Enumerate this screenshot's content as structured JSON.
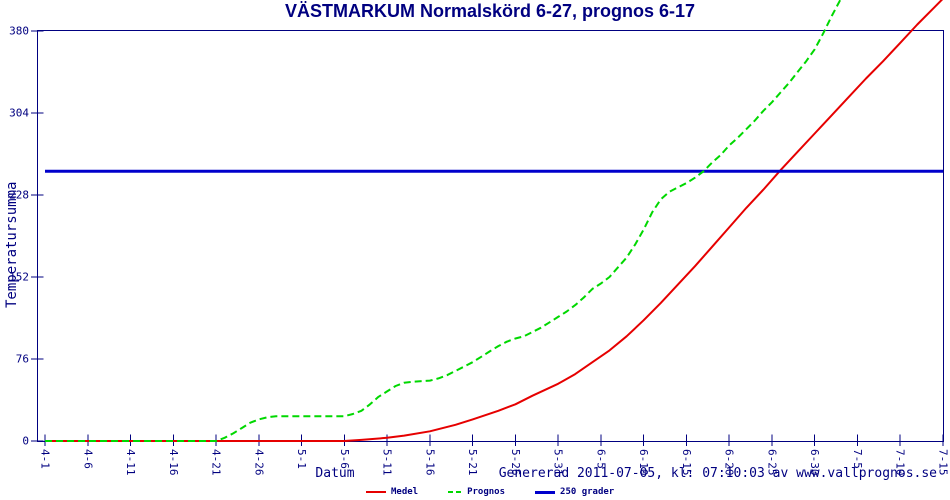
{
  "title": "VÄSTMARKUM Normalskörd 6-27, prognos 6-17",
  "footer": {
    "text": "Genererad 2011-07-05, kl: 07:10:03 av www.vallprognos.se"
  },
  "colors": {
    "text_and_frame": "#000080",
    "medel": "#e60000",
    "prognos": "#00d800",
    "reference_line": "#0000cc",
    "background": "#ffffff"
  },
  "chart_data": {
    "type": "line",
    "title": "VÄSTMARKUM Normalskörd 6-27, prognos 6-17",
    "xlabel": "Datum",
    "ylabel": "Temperatursumma",
    "ylim": [
      0,
      380
    ],
    "y_ticks": [
      0,
      76,
      152,
      228,
      304,
      380
    ],
    "x_ticks": [
      "4-1",
      "4-6",
      "4-11",
      "4-16",
      "4-21",
      "4-26",
      "5-1",
      "5-6",
      "5-11",
      "5-16",
      "5-21",
      "5-26",
      "5-31",
      "6-5",
      "6-10",
      "6-15",
      "6-20",
      "6-25",
      "6-30",
      "7-5",
      "7-10",
      "7-15"
    ],
    "x_range": [
      "4-1",
      "7-15"
    ],
    "grid": false,
    "legend_position": "bottom-center",
    "series": [
      {
        "name": "Medel",
        "color": "#e60000",
        "style": "solid",
        "width": 2,
        "points": [
          [
            "4-1",
            0
          ],
          [
            "4-11",
            0
          ],
          [
            "4-21",
            0
          ],
          [
            "5-1",
            0
          ],
          [
            "5-6",
            0
          ],
          [
            "5-8",
            1
          ],
          [
            "5-11",
            3
          ],
          [
            "5-13",
            5
          ],
          [
            "5-16",
            9
          ],
          [
            "5-19",
            15
          ],
          [
            "5-21",
            20
          ],
          [
            "5-24",
            28
          ],
          [
            "5-26",
            34
          ],
          [
            "5-28",
            42
          ],
          [
            "5-31",
            53
          ],
          [
            "6-2",
            62
          ],
          [
            "6-4",
            73
          ],
          [
            "6-6",
            84
          ],
          [
            "6-8",
            97
          ],
          [
            "6-10",
            112
          ],
          [
            "6-12",
            128
          ],
          [
            "6-14",
            145
          ],
          [
            "6-16",
            162
          ],
          [
            "6-18",
            180
          ],
          [
            "6-20",
            198
          ],
          [
            "6-22",
            216
          ],
          [
            "6-24",
            233
          ],
          [
            "6-26",
            251
          ],
          [
            "6-28",
            268
          ],
          [
            "6-30",
            285
          ],
          [
            "7-2",
            302
          ],
          [
            "7-4",
            319
          ],
          [
            "7-6",
            336
          ],
          [
            "7-8",
            352
          ],
          [
            "7-10",
            369
          ],
          [
            "7-12",
            386
          ],
          [
            "7-14",
            402
          ],
          [
            "7-15",
            410
          ]
        ]
      },
      {
        "name": "250 grader",
        "color": "#0000cc",
        "style": "solid",
        "width": 3,
        "points": [
          [
            "4-1",
            250
          ],
          [
            "7-15",
            250
          ]
        ]
      },
      {
        "name": "Prognos",
        "color": "#00d800",
        "style": "dashed",
        "width": 2,
        "points": [
          [
            "4-1",
            0
          ],
          [
            "4-11",
            0
          ],
          [
            "4-21",
            0
          ],
          [
            "4-22",
            3
          ],
          [
            "4-23",
            7
          ],
          [
            "4-24",
            12
          ],
          [
            "4-25",
            17
          ],
          [
            "4-26",
            20
          ],
          [
            "4-27",
            22
          ],
          [
            "4-28",
            23
          ],
          [
            "5-2",
            23
          ],
          [
            "5-6",
            23
          ],
          [
            "5-7",
            25
          ],
          [
            "5-8",
            28
          ],
          [
            "5-9",
            34
          ],
          [
            "5-10",
            41
          ],
          [
            "5-11",
            46
          ],
          [
            "5-12",
            51
          ],
          [
            "5-13",
            54
          ],
          [
            "5-14",
            55
          ],
          [
            "5-16",
            56
          ],
          [
            "5-17",
            58
          ],
          [
            "5-18",
            61
          ],
          [
            "5-19",
            65
          ],
          [
            "5-20",
            69
          ],
          [
            "5-21",
            73
          ],
          [
            "5-22",
            78
          ],
          [
            "5-23",
            83
          ],
          [
            "5-24",
            88
          ],
          [
            "5-25",
            92
          ],
          [
            "5-26",
            95
          ],
          [
            "5-27",
            97
          ],
          [
            "5-28",
            101
          ],
          [
            "5-29",
            105
          ],
          [
            "5-30",
            110
          ],
          [
            "5-31",
            115
          ],
          [
            "6-1",
            120
          ],
          [
            "6-2",
            126
          ],
          [
            "6-3",
            133
          ],
          [
            "6-4",
            141
          ],
          [
            "6-5",
            146
          ],
          [
            "6-6",
            152
          ],
          [
            "6-7",
            161
          ],
          [
            "6-8",
            170
          ],
          [
            "6-9",
            182
          ],
          [
            "6-10",
            196
          ],
          [
            "6-11",
            212
          ],
          [
            "6-12",
            224
          ],
          [
            "6-13",
            231
          ],
          [
            "6-14",
            235
          ],
          [
            "6-15",
            239
          ],
          [
            "6-16",
            244
          ],
          [
            "6-17",
            250
          ],
          [
            "6-18",
            258
          ],
          [
            "6-19",
            265
          ],
          [
            "6-20",
            274
          ],
          [
            "6-21",
            281
          ],
          [
            "6-22",
            289
          ],
          [
            "6-23",
            297
          ],
          [
            "6-24",
            306
          ],
          [
            "6-25",
            314
          ],
          [
            "6-26",
            323
          ],
          [
            "6-27",
            332
          ],
          [
            "6-28",
            342
          ],
          [
            "6-29",
            352
          ],
          [
            "6-30",
            363
          ],
          [
            "7-1",
            378
          ],
          [
            "7-2",
            394
          ],
          [
            "7-3",
            409
          ]
        ]
      }
    ],
    "annotations": {
      "reference_value": 250,
      "prognos_reaches_250": "6-17",
      "medel_reaches_250": "6-27"
    }
  }
}
